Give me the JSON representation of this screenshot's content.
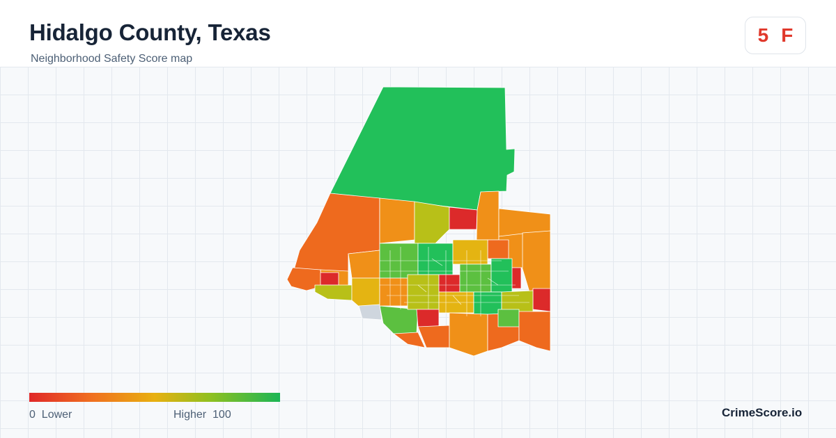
{
  "header": {
    "title": "Hidalgo County, Texas",
    "subtitle": "Neighborhood Safety Score map"
  },
  "score_badge": {
    "score": "5",
    "grade": "F",
    "color": "#e0382b"
  },
  "legend": {
    "min_value": "0",
    "min_label": "Lower",
    "max_label": "Higher",
    "max_value": "100",
    "colors": [
      "#e02828",
      "#f07020",
      "#e8b010",
      "#90c020",
      "#1bb555"
    ]
  },
  "brand": {
    "name": "CrimeScore.io"
  },
  "map": {
    "palette": {
      "safe_green": "#22c05a",
      "mid_green": "#5cc040",
      "yellow_green": "#b8c018",
      "yellow": "#e4b412",
      "orange": "#f09018",
      "dark_orange": "#ee6a1e",
      "red": "#dc2a2a",
      "water_gray": "#cfd6de"
    }
  }
}
